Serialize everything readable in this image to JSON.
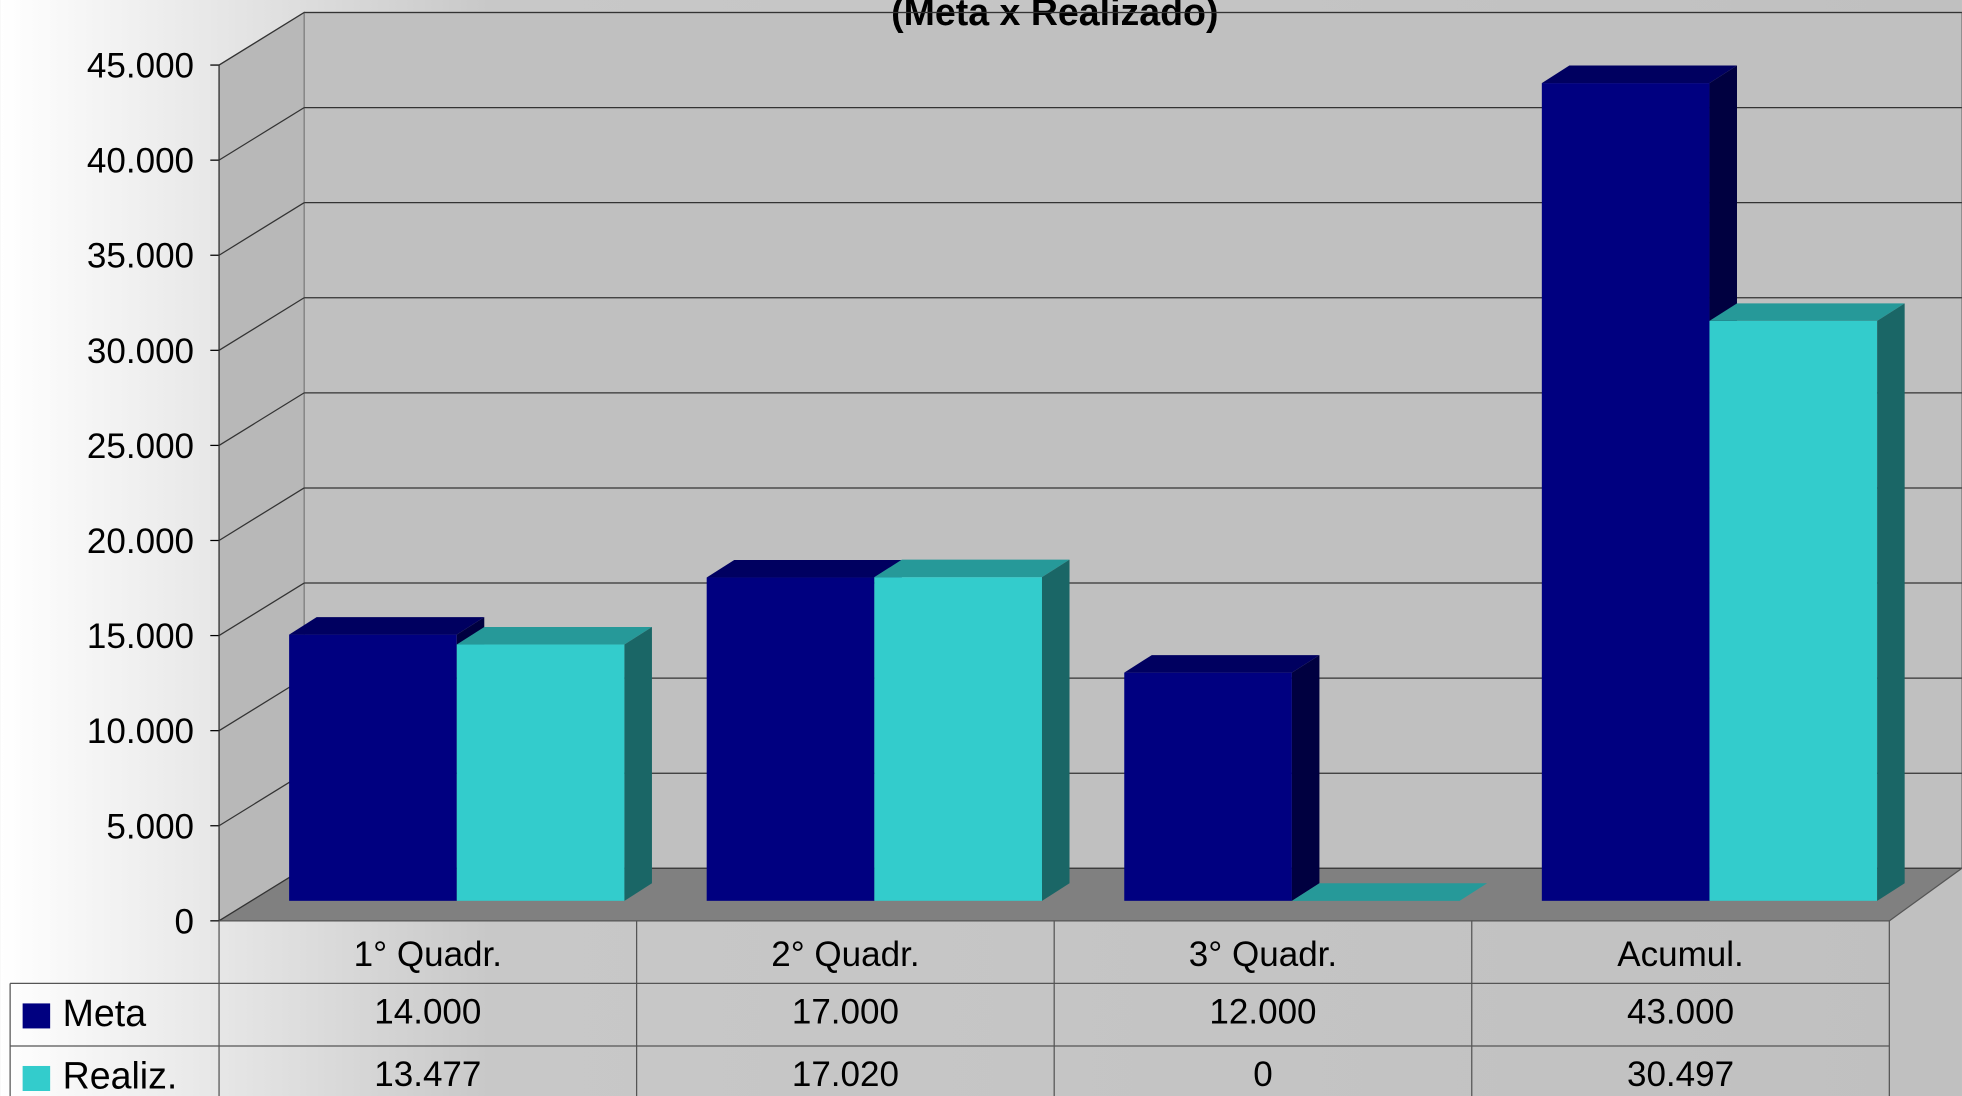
{
  "chart_data": {
    "type": "bar3d",
    "title": "(Meta x Realizado)",
    "categories": [
      "1° Quadr.",
      "2° Quadr.",
      "3° Quadr.",
      "Acumul."
    ],
    "series": [
      {
        "name": "Meta",
        "color": "#000080",
        "values": [
          14000,
          17000,
          12000,
          43000
        ],
        "value_labels": [
          "14.000",
          "17.000",
          "12.000",
          "43.000"
        ]
      },
      {
        "name": "Realiz.",
        "color": "#33cccc",
        "values": [
          13477,
          17020,
          0,
          30497
        ],
        "value_labels": [
          "13.477",
          "17.020",
          "0",
          "30.497"
        ]
      }
    ],
    "ylim": [
      0,
      45000
    ],
    "yticks": [
      0,
      {
        "value": 5000,
        "label": "5.000"
      },
      {
        "value": 10000,
        "label": "10.000"
      },
      {
        "value": 15000,
        "label": "15.000"
      },
      {
        "value": 20000,
        "label": "20.000"
      },
      {
        "value": 25000,
        "label": "25.000"
      },
      {
        "value": 30000,
        "label": "30.000"
      },
      {
        "value": 35000,
        "label": "35.000"
      },
      {
        "value": 40000,
        "label": "40.000"
      },
      {
        "value": 45000,
        "label": "45.000"
      }
    ],
    "grid": true,
    "legend": "bottom"
  }
}
